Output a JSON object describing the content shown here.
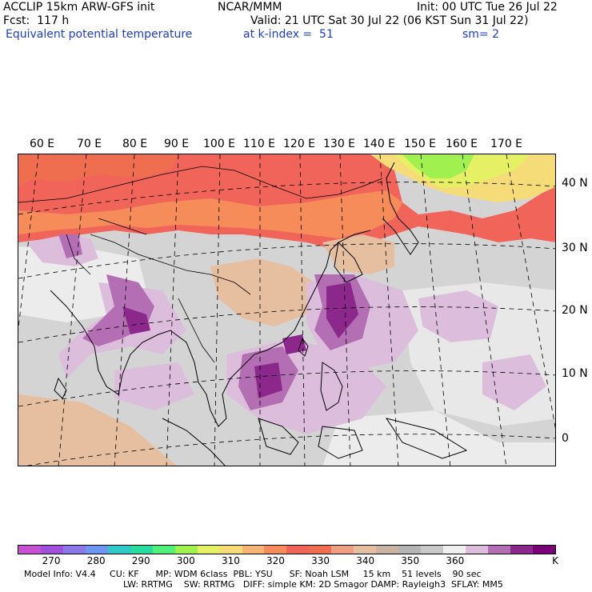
{
  "header": {
    "model": "ACCLIP 15km ARW-GFS init",
    "center": "NCAR/MMM",
    "init": "Init: 00 UTC Tue 26 Jul 22",
    "fcst": "Fcst:  117 h",
    "valid": "Valid: 21 UTC Sat 30 Jul 22 (06 KST Sun 31 Jul 22)",
    "field": "Equivalent potential temperature",
    "level": "at k-index =  51",
    "smooth": "sm= 2"
  },
  "map": {
    "lon_labels": [
      "60 E",
      "70 E",
      "80 E",
      "90 E",
      "100 E",
      "110 E",
      "120 E",
      "130 E",
      "140 E",
      "150 E",
      "160 E",
      "170 E"
    ],
    "lat_labels": [
      "40 N",
      "30 N",
      "20 N",
      "10 N",
      "0"
    ]
  },
  "colorbar": {
    "colors": [
      "#c850d2",
      "#a050dc",
      "#8c78e6",
      "#6e96f0",
      "#32c8c8",
      "#28dca0",
      "#50f078",
      "#a0f050",
      "#e6f064",
      "#f5dc78",
      "#f5b478",
      "#f58c5a",
      "#f0645a",
      "#f06e50",
      "#f0a082",
      "#e6bea0",
      "#c8b4a0",
      "#b4b4b4",
      "#c8c8c8",
      "#f0f0f0",
      "#dcbedc",
      "#b46eb4",
      "#8c288c",
      "#780078"
    ],
    "ticks": [
      "270",
      "280",
      "290",
      "300",
      "310",
      "320",
      "330",
      "340",
      "350",
      "360"
    ],
    "unit": "K"
  },
  "footer": {
    "line1": "Model Info: V4.4     CU: KF      MP: WDM 6class  PBL: YSU      SF: Noah LSM     15 km    51 levels    90 sec",
    "line2": "LW: RRTMG    SW: RRTMG   DIFF: simple KM: 2D Smagor DAMP: Rayleigh3  SFLAY: MM5"
  }
}
